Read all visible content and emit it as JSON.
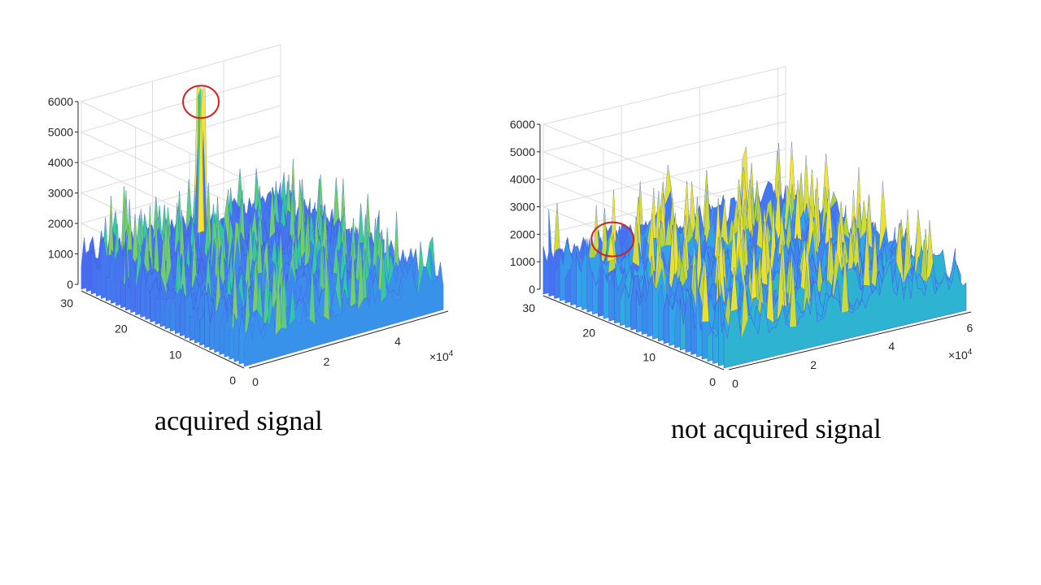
{
  "captions": {
    "left": "acquired signal",
    "right": "not acquired signal"
  },
  "chart_data": [
    {
      "type": "surface",
      "caption": "acquired signal",
      "zlim": [
        0,
        6000
      ],
      "z_ticks": [
        "0",
        "1000",
        "2000",
        "3000",
        "4000",
        "5000",
        "6000"
      ],
      "y_ticks": [
        "0",
        "10",
        "20",
        "30"
      ],
      "x_ticks": [
        "0",
        "2",
        "4"
      ],
      "x_exponent": "×10",
      "x_exponent_power": "4",
      "noise_floor": 1600,
      "peak": {
        "x": 2.6,
        "y": 25,
        "z": 6000,
        "circled": true
      },
      "colormap": [
        "#3e26a8",
        "#4770f0",
        "#2fa8e6",
        "#2cc8a8",
        "#a8d23c",
        "#f9e52d"
      ]
    },
    {
      "type": "surface",
      "caption": "not acquired signal",
      "zlim": [
        0,
        6000
      ],
      "z_ticks": [
        "0",
        "1000",
        "2000",
        "3000",
        "4000",
        "5000",
        "6000"
      ],
      "y_ticks": [
        "0",
        "10",
        "20",
        "30"
      ],
      "x_ticks": [
        "0",
        "2",
        "4",
        "6"
      ],
      "x_exponent": "×10",
      "x_exponent_power": "4",
      "noise_floor": 2000,
      "peak": {
        "x": 0.5,
        "y": 22,
        "z": 2600,
        "circled": true
      },
      "colormap": [
        "#3e26a8",
        "#4770f0",
        "#2fa8e6",
        "#2cc8a8",
        "#a8d23c",
        "#f9e52d"
      ]
    }
  ]
}
